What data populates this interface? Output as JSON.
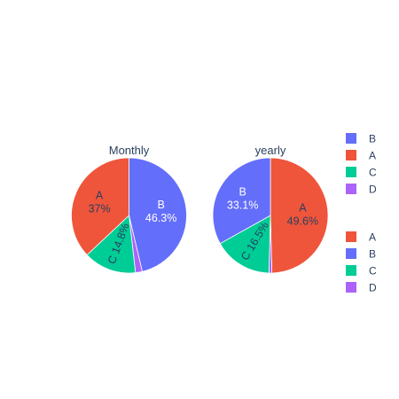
{
  "chart_data": [
    {
      "type": "pie",
      "title": "Monthly",
      "slices": [
        {
          "label": "B",
          "value": 46.3,
          "color": "#636efa",
          "text_color": "#ffffff"
        },
        {
          "label": "D",
          "value": 1.9,
          "color": "#ab63fa",
          "text_color": "#2a3f5f"
        },
        {
          "label": "C",
          "value": 14.8,
          "color": "#00cc96",
          "text_color": "#2a3f5f"
        },
        {
          "label": "A",
          "value": 37.0,
          "color": "#ef553b",
          "text_color": "#2a3f5f"
        }
      ],
      "percent_labels": {
        "B": "46.3%",
        "A": "37%",
        "C": "14.8%",
        "D": ""
      }
    },
    {
      "type": "pie",
      "title": "yearly",
      "slices": [
        {
          "label": "A",
          "value": 49.6,
          "color": "#ef553b",
          "text_color": "#2a3f5f"
        },
        {
          "label": "D",
          "value": 0.8,
          "color": "#ab63fa",
          "text_color": "#2a3f5f"
        },
        {
          "label": "C",
          "value": 16.5,
          "color": "#00cc96",
          "text_color": "#2a3f5f"
        },
        {
          "label": "B",
          "value": 33.1,
          "color": "#636efa",
          "text_color": "#ffffff"
        }
      ],
      "percent_labels": {
        "A": "49.6%",
        "B": "33.1%",
        "C": "16.5%",
        "D": ""
      }
    }
  ],
  "legends": [
    {
      "items": [
        {
          "label": "B",
          "color": "#636efa"
        },
        {
          "label": "A",
          "color": "#ef553b"
        },
        {
          "label": "C",
          "color": "#00cc96"
        },
        {
          "label": "D",
          "color": "#ab63fa"
        }
      ]
    },
    {
      "items": [
        {
          "label": "A",
          "color": "#ef553b"
        },
        {
          "label": "B",
          "color": "#636efa"
        },
        {
          "label": "C",
          "color": "#00cc96"
        },
        {
          "label": "D",
          "color": "#ab63fa"
        }
      ]
    }
  ]
}
